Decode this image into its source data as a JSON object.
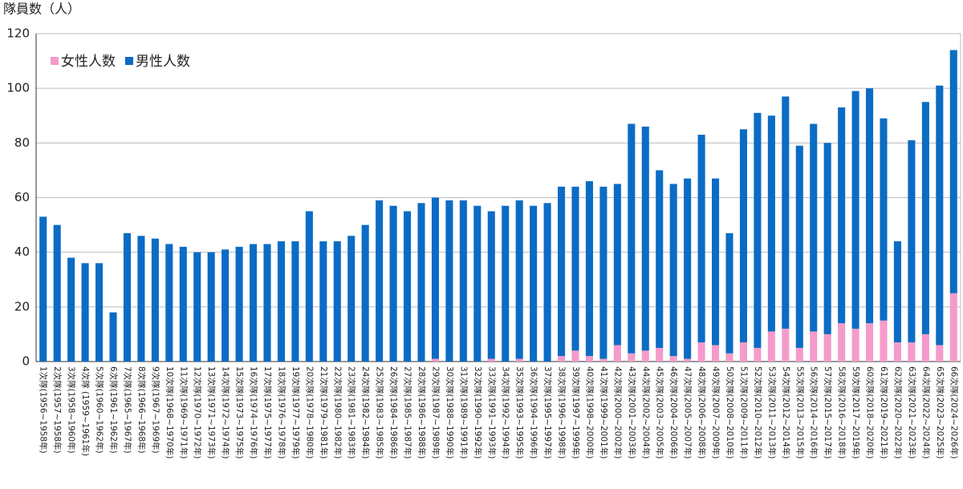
{
  "chart_data": {
    "type": "stacked_bar",
    "y_label": "隊員数（人）",
    "categories": [
      "1次隊(1956~1958年)",
      "2次隊(1957~1958年)",
      "3次隊(1958~1960年)",
      "4次隊 (1959~1961年)",
      "5次隊(1960~1962年)",
      "6次隊(1961~1962年)",
      "7次隊(1965~1967年)",
      "8次隊(1966~1968年)",
      "9次隊(1967~1969年)",
      "10次隊(1968~1970年)",
      "11次隊(1969~1971年)",
      "12次隊(1970~1972年)",
      "13次隊(1971~1973年)",
      "14次隊(1972~1974年)",
      "15次隊(1973~1975年)",
      "16次隊(1974~1976年)",
      "17次隊(1975~1977年)",
      "18次隊(1976~1978年)",
      "19次隊(1977~1979年)",
      "20次隊(1978~1980年)",
      "21次隊(1979~1981年)",
      "22次隊(1980~1982年)",
      "23次隊(1981~1983年)",
      "24次隊(1982~1984年)",
      "25次隊(1983~1985年)",
      "26次隊(1984~1986年)",
      "27次隊(1985~1987年)",
      "28次隊(1986~1988年)",
      "29次隊(1987~1989年)",
      "30次隊(1988~1990年)",
      "31次隊(1989~1991年)",
      "32次隊(1990~1992年)",
      "33次隊(1991~1993年)",
      "34次隊(1992~1994年)",
      "35次隊(1993~1995年)",
      "36次隊(1994~1996年)",
      "37次隊(1995~1997年)",
      "38次隊(1996~1998年)",
      "39次隊(1997~1999年)",
      "40次隊(1998~2000年)",
      "41次隊(1999~2001年)",
      "42次隊(2000~2002年)",
      "43次隊(2001~2003年)",
      "44次隊(2002~2004年)",
      "45次隊(2003~2005年)",
      "46次隊(2004~2006年)",
      "47次隊(2005~2007年)",
      "48次隊(2006~2008年)",
      "49次隊(2007~2009年)",
      "50次隊(2008~2010年)",
      "51次隊(2009~2011年)",
      "52次隊(2010~2012年)",
      "53次隊(2011~2013年)",
      "54次隊(2012~2014年)",
      "55次隊(2013~2015年)",
      "56次隊(2014~2016年)",
      "57次隊(2015~2017年)",
      "58次隊(2016~2018年)",
      "59次隊(2017~2019年)",
      "60次隊(2018~2020年)",
      "61次隊(2019~2021年)",
      "62次隊(2020~2022年)",
      "63次隊(2021~2023年)",
      "64次隊(2022~2024年)",
      "65次隊(2023~2025年)",
      "66次隊(2024~2026年)"
    ],
    "series": [
      {
        "name": "女性人数",
        "color": "#f59bcb",
        "values": [
          0,
          0,
          0,
          0,
          0,
          0,
          0,
          0,
          0,
          0,
          0,
          0,
          0,
          0,
          0,
          0,
          0,
          0,
          0,
          0,
          0,
          0,
          0,
          0,
          0,
          0,
          0,
          0,
          1,
          0,
          0,
          0,
          1,
          0,
          1,
          0,
          0,
          2,
          4,
          2,
          1,
          6,
          3,
          4,
          5,
          2,
          1,
          7,
          6,
          3,
          7,
          5,
          11,
          12,
          5,
          11,
          10,
          14,
          12,
          14,
          15,
          7,
          7,
          10,
          6,
          25
        ]
      },
      {
        "name": "男性人数",
        "color": "#0b6cc4",
        "values": [
          53,
          50,
          38,
          36,
          36,
          18,
          47,
          46,
          45,
          43,
          42,
          40,
          40,
          41,
          42,
          43,
          43,
          44,
          44,
          55,
          44,
          44,
          46,
          50,
          59,
          57,
          55,
          58,
          59,
          59,
          59,
          57,
          54,
          57,
          58,
          57,
          58,
          62,
          60,
          64,
          63,
          59,
          84,
          82,
          65,
          63,
          66,
          76,
          61,
          44,
          78,
          86,
          79,
          85,
          74,
          76,
          70,
          79,
          87,
          86,
          74,
          37,
          74,
          85,
          95,
          89
        ]
      }
    ],
    "ylim": [
      0,
      120
    ],
    "yticks": [
      0,
      20,
      40,
      60,
      80,
      100,
      120
    ],
    "grid": true,
    "legend": "top-left"
  }
}
